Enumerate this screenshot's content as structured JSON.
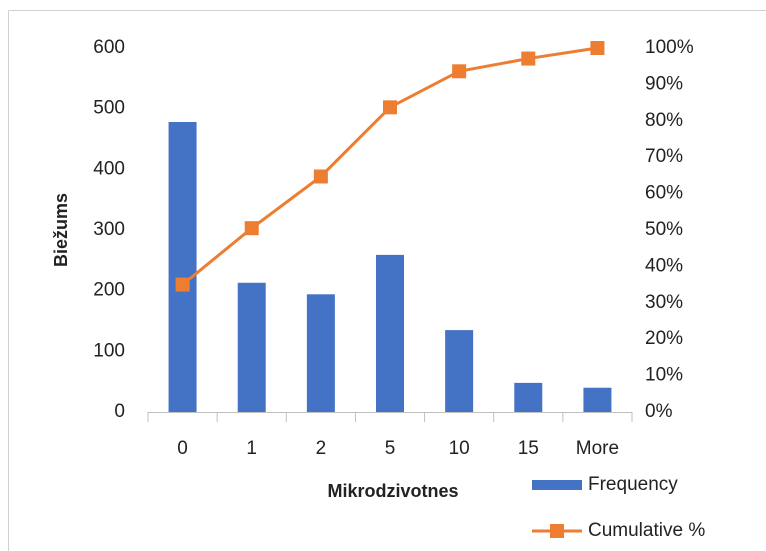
{
  "chart_data": {
    "type": "bar",
    "x_label": "Mikrodzivotnes",
    "y_label": "Biežums",
    "categories": [
      "0",
      "1",
      "2",
      "5",
      "10",
      "15",
      "More"
    ],
    "series": [
      {
        "name": "Frequency",
        "type": "bar",
        "color": "#4472c4",
        "values": [
          478,
          213,
          194,
          259,
          135,
          48,
          40
        ]
      },
      {
        "name": "Cumulative %",
        "type": "line",
        "axis": "y2",
        "color": "#ed7d31",
        "values": [
          35,
          50.5,
          64.7,
          83.7,
          93.6,
          97.1,
          100
        ]
      }
    ],
    "ylim": [
      0,
      600
    ],
    "yticks": [
      0,
      100,
      200,
      300,
      400,
      500,
      600
    ],
    "y2lim": [
      0,
      100
    ],
    "y2ticks": [
      {
        "value": 0,
        "label": "0%"
      },
      {
        "value": 10,
        "label": "10%"
      },
      {
        "value": 20,
        "label": "20%"
      },
      {
        "value": 30,
        "label": "30%"
      },
      {
        "value": 40,
        "label": "40%"
      },
      {
        "value": 50,
        "label": "50%"
      },
      {
        "value": 60,
        "label": "60%"
      },
      {
        "value": 70,
        "label": "70%"
      },
      {
        "value": 80,
        "label": "80%"
      },
      {
        "value": 90,
        "label": "90%"
      },
      {
        "value": 100,
        "label": "100%"
      }
    ],
    "legend": "bottom-right",
    "grid": false
  }
}
